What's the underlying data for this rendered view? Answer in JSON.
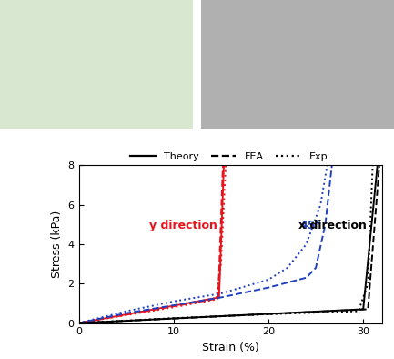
{
  "chart_data": {
    "type": "line",
    "x_label": "Strain (%)",
    "y_label": "Stress (kPa)",
    "xlim": [
      0,
      32
    ],
    "xticks": [
      0,
      10,
      20,
      30
    ],
    "ylim": [
      0,
      8
    ],
    "yticks": [
      0,
      2,
      4,
      6,
      8
    ],
    "legend": "upper center",
    "legend_entries": [
      {
        "name": "Theory",
        "line_style": "solid"
      },
      {
        "name": "FEA",
        "line_style": "dashed"
      },
      {
        "name": "Exp.",
        "line_style": "dotted"
      }
    ],
    "groups": [
      {
        "label": "y direction",
        "color": "#e8141c",
        "series": [
          {
            "line_style": "solid",
            "x": [
              0,
              14.8,
              15.3
            ],
            "values": [
              0,
              1.3,
              8
            ]
          },
          {
            "line_style": "dashed",
            "x": [
              0,
              14.7,
              15.2
            ],
            "values": [
              0,
              1.25,
              8
            ]
          },
          {
            "line_style": "dotted",
            "x": [
              0,
              5,
              10,
              14.5,
              15,
              15.5
            ],
            "values": [
              0,
              0.4,
              0.8,
              1.2,
              3,
              8
            ]
          }
        ]
      },
      {
        "label": "45°",
        "color": "#2040c0",
        "series": [
          {
            "line_style": "dashed",
            "x": [
              0,
              5,
              10,
              15,
              20,
              24,
              25,
              26,
              26.7
            ],
            "values": [
              0,
              0.5,
              0.9,
              1.3,
              1.8,
              2.3,
              2.8,
              5,
              8
            ]
          },
          {
            "line_style": "dotted",
            "x": [
              0,
              5,
              10,
              15,
              20,
              22,
              24,
              25.5,
              26.2
            ],
            "values": [
              0,
              0.6,
              1.1,
              1.5,
              2.2,
              2.8,
              4,
              6,
              8
            ]
          }
        ]
      },
      {
        "label": "x direction",
        "color": "#000000",
        "series": [
          {
            "line_style": "solid",
            "x": [
              0,
              30,
              31.5
            ],
            "values": [
              0,
              0.7,
              8
            ]
          },
          {
            "line_style": "dashed",
            "x": [
              0,
              30.5,
              31.7
            ],
            "values": [
              0,
              0.7,
              8
            ]
          },
          {
            "line_style": "dotted",
            "x": [
              0,
              10,
              20,
              29.5,
              30.5,
              31
            ],
            "values": [
              0,
              0.25,
              0.45,
              0.6,
              2,
              8
            ]
          }
        ]
      }
    ]
  }
}
